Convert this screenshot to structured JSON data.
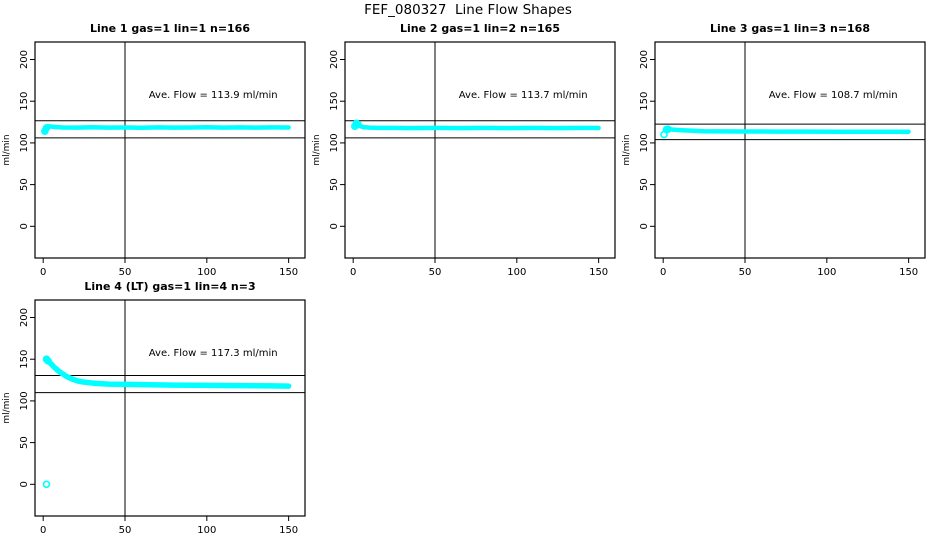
{
  "header": {
    "title": "FEF_080327  Line Flow Shapes"
  },
  "colors": {
    "background": "#ffffff",
    "axis": "#000000",
    "series": "#00ffff"
  },
  "chart_data": [
    {
      "type": "scatter",
      "title": "Line 1 gas=1 lin=1 n=166",
      "annotation": "Ave. Flow =  113.9  ml/min",
      "ave_flow": 113.9,
      "n": 166,
      "xlabel": "",
      "ylabel": "ml/min",
      "xlim": [
        -5,
        160
      ],
      "ylim": [
        -38,
        221
      ],
      "xticks": [
        0,
        50,
        100,
        150
      ],
      "yticks": [
        0,
        50,
        100,
        150,
        200
      ],
      "vline_x": 50,
      "hlines": [
        126.5,
        106
      ],
      "grid": false,
      "point_color": "#00ffff",
      "band_width": 4.5,
      "profile": [
        [
          1,
          114
        ],
        [
          2,
          118
        ],
        [
          3,
          120
        ],
        [
          5,
          119.5
        ],
        [
          8,
          119
        ],
        [
          12,
          118.5
        ],
        [
          20,
          118.4
        ],
        [
          30,
          118.8
        ],
        [
          40,
          118.3
        ],
        [
          50,
          118.5
        ],
        [
          60,
          118.2
        ],
        [
          70,
          118.6
        ],
        [
          80,
          118.3
        ],
        [
          90,
          118.5
        ],
        [
          100,
          118.7
        ],
        [
          110,
          118.4
        ],
        [
          120,
          118.6
        ],
        [
          130,
          118.4
        ],
        [
          140,
          118.6
        ],
        [
          150,
          118.5
        ]
      ],
      "isolated_points": [
        [
          1,
          114
        ],
        [
          2,
          118
        ]
      ]
    },
    {
      "type": "scatter",
      "title": "Line 2 gas=1 lin=2 n=165",
      "annotation": "Ave. Flow =  113.7  ml/min",
      "ave_flow": 113.7,
      "n": 165,
      "xlabel": "",
      "ylabel": "ml/min",
      "xlim": [
        -5,
        160
      ],
      "ylim": [
        -38,
        221
      ],
      "xticks": [
        0,
        50,
        100,
        150
      ],
      "yticks": [
        0,
        50,
        100,
        150,
        200
      ],
      "vline_x": 50,
      "hlines": [
        126.5,
        106
      ],
      "grid": false,
      "point_color": "#00ffff",
      "band_width": 4.5,
      "profile": [
        [
          1,
          120
        ],
        [
          2,
          123.5
        ],
        [
          3,
          122.5
        ],
        [
          4,
          120.5
        ],
        [
          6,
          119
        ],
        [
          10,
          118.3
        ],
        [
          15,
          118
        ],
        [
          25,
          118
        ],
        [
          35,
          117.8
        ],
        [
          50,
          118
        ],
        [
          65,
          117.8
        ],
        [
          80,
          118
        ],
        [
          95,
          117.8
        ],
        [
          110,
          118
        ],
        [
          125,
          117.8
        ],
        [
          140,
          118
        ],
        [
          150,
          117.9
        ]
      ],
      "isolated_points": [
        [
          1,
          120
        ],
        [
          2,
          123.5
        ],
        [
          3,
          122
        ]
      ]
    },
    {
      "type": "scatter",
      "title": "Line 3 gas=1 lin=3 n=168",
      "annotation": "Ave. Flow =  108.7  ml/min",
      "ave_flow": 108.7,
      "n": 168,
      "xlabel": "",
      "ylabel": "ml/min",
      "xlim": [
        -5,
        160
      ],
      "ylim": [
        -38,
        221
      ],
      "xticks": [
        0,
        50,
        100,
        150
      ],
      "yticks": [
        0,
        50,
        100,
        150,
        200
      ],
      "vline_x": 50,
      "hlines": [
        122.5,
        104
      ],
      "grid": false,
      "point_color": "#00ffff",
      "band_width": 4.5,
      "profile": [
        [
          2,
          116
        ],
        [
          4,
          116.5
        ],
        [
          6,
          116
        ],
        [
          9,
          115.5
        ],
        [
          13,
          115
        ],
        [
          18,
          114.5
        ],
        [
          25,
          114
        ],
        [
          35,
          113.8
        ],
        [
          50,
          113.7
        ],
        [
          70,
          113.6
        ],
        [
          90,
          113.6
        ],
        [
          110,
          113.5
        ],
        [
          130,
          113.4
        ],
        [
          150,
          113.5
        ]
      ],
      "isolated_points": [
        [
          0.5,
          110
        ],
        [
          2,
          116
        ],
        [
          3,
          116.5
        ]
      ]
    },
    {
      "type": "scatter",
      "title": "Line 4 (LT) gas=1 lin=4 n=3",
      "annotation": "Ave. Flow =  117.3  ml/min",
      "ave_flow": 117.3,
      "n": 3,
      "xlabel": "",
      "ylabel": "ml/min",
      "xlim": [
        -5,
        160
      ],
      "ylim": [
        -38,
        221
      ],
      "xticks": [
        0,
        50,
        100,
        150
      ],
      "yticks": [
        0,
        50,
        100,
        150,
        200
      ],
      "vline_x": 50,
      "hlines": [
        130.5,
        110
      ],
      "grid": false,
      "point_color": "#00ffff",
      "band_width": 5.5,
      "profile": [
        [
          2,
          150
        ],
        [
          3,
          148
        ],
        [
          5,
          144
        ],
        [
          7,
          140
        ],
        [
          9,
          136.5
        ],
        [
          11,
          133.5
        ],
        [
          13,
          131
        ],
        [
          15,
          128.5
        ],
        [
          18,
          126
        ],
        [
          21,
          124
        ],
        [
          24,
          122.8
        ],
        [
          28,
          121.8
        ],
        [
          32,
          121
        ],
        [
          36,
          120.5
        ],
        [
          40,
          120.2
        ],
        [
          45,
          120
        ],
        [
          50,
          119.8
        ],
        [
          60,
          119.5
        ],
        [
          70,
          119.2
        ],
        [
          80,
          119
        ],
        [
          90,
          118.8
        ],
        [
          100,
          118.6
        ],
        [
          110,
          118.5
        ],
        [
          120,
          118.3
        ],
        [
          130,
          118.2
        ],
        [
          140,
          118
        ],
        [
          150,
          117.8
        ]
      ],
      "isolated_points": [
        [
          2,
          0
        ],
        [
          2,
          150
        ],
        [
          3,
          148
        ]
      ]
    }
  ]
}
